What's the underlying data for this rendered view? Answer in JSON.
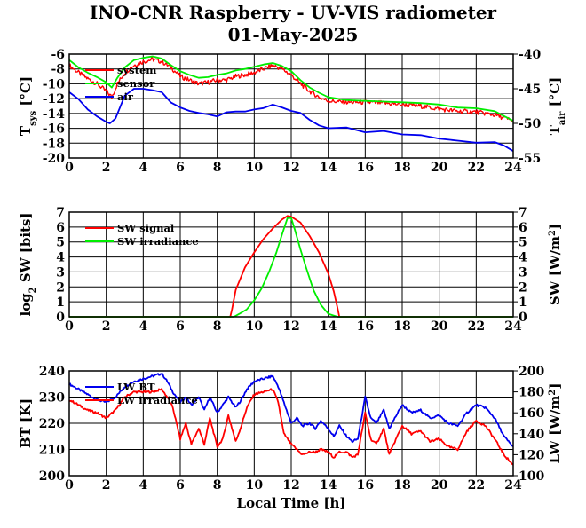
{
  "title": "INO-CNR Raspberry - UV-VIS radiometer",
  "subtitle": "01-May-2025",
  "colors": {
    "red": "#ff0000",
    "green": "#00ee00",
    "blue": "#0000ee"
  },
  "chart_data": [
    {
      "type": "line",
      "ylabel_left": {
        "main": "T",
        "sub": "sys",
        "unit": " [°C]"
      },
      "ylabel_right": {
        "main": "T",
        "sub": "air",
        "unit": " [°C]"
      },
      "ylim": [
        -20,
        -6
      ],
      "ylim_right": [
        -55,
        -40
      ],
      "xlim": [
        0,
        24
      ],
      "x_ticks": [
        "0",
        "2",
        "4",
        "6",
        "8",
        "10",
        "12",
        "14",
        "16",
        "18",
        "20",
        "22",
        "24"
      ],
      "y_ticks": [
        "-20",
        "-18",
        "-16",
        "-14",
        "-12",
        "-10",
        "-8",
        "-6"
      ],
      "y_ticks_right": [
        "-55",
        "-50",
        "-45",
        "-40"
      ],
      "legend": [
        "system",
        "sensor",
        "air"
      ],
      "series": [
        {
          "name": "system",
          "color": "red",
          "axis": "left",
          "noisy": true,
          "x": [
            0,
            0.5,
            1,
            1.5,
            2,
            2.3,
            2.6,
            3,
            3.5,
            4,
            4.5,
            5,
            5.5,
            6,
            6.5,
            7,
            7.5,
            8,
            8.5,
            9,
            9.5,
            10,
            10.5,
            11,
            11.5,
            12,
            12.5,
            13,
            13.5,
            14,
            15,
            16,
            17,
            18,
            19,
            20,
            21,
            22,
            23,
            24
          ],
          "y": [
            -7.5,
            -8.5,
            -9.3,
            -10,
            -11,
            -11.8,
            -10,
            -8.5,
            -7.5,
            -7,
            -6.7,
            -7,
            -7.8,
            -9,
            -9.5,
            -10,
            -9.8,
            -9.5,
            -9.5,
            -9,
            -8.8,
            -8.5,
            -8,
            -7.5,
            -8,
            -8.8,
            -10,
            -11,
            -11.8,
            -12.3,
            -12.5,
            -12.5,
            -12.6,
            -12.8,
            -13,
            -13.4,
            -13.7,
            -13.8,
            -14.2,
            -15
          ]
        },
        {
          "name": "sensor",
          "color": "green",
          "axis": "left",
          "x": [
            0,
            0.5,
            1,
            1.5,
            2,
            2.3,
            2.6,
            3,
            3.5,
            4,
            4.5,
            5,
            5.5,
            6,
            6.5,
            7,
            7.5,
            8,
            8.5,
            9,
            9.5,
            10,
            10.5,
            11,
            11.5,
            12,
            12.5,
            13,
            13.5,
            14,
            15,
            16,
            17,
            18,
            19,
            20,
            21,
            22,
            23,
            24
          ],
          "y": [
            -6.8,
            -7.8,
            -8.5,
            -9.1,
            -9.8,
            -10.5,
            -9.2,
            -7.8,
            -6.8,
            -6.5,
            -6.3,
            -6.6,
            -7.5,
            -8.3,
            -8.8,
            -9.2,
            -9.1,
            -8.8,
            -8.6,
            -8.2,
            -8,
            -7.7,
            -7.4,
            -7.2,
            -7.6,
            -8.3,
            -9.5,
            -10.5,
            -11.2,
            -11.8,
            -12.2,
            -12.3,
            -12.4,
            -12.5,
            -12.6,
            -12.8,
            -13.2,
            -13.3,
            -13.7,
            -15
          ]
        },
        {
          "name": "air",
          "color": "blue",
          "axis": "right",
          "x": [
            0,
            0.5,
            1,
            1.5,
            2,
            2.2,
            2.5,
            3,
            3.5,
            4,
            4.5,
            5,
            5.5,
            6,
            6.5,
            7,
            7.5,
            8,
            8.5,
            9,
            9.5,
            10,
            10.5,
            11,
            11.5,
            12,
            12.5,
            13,
            13.5,
            14,
            15,
            16,
            17,
            18,
            19,
            20,
            21,
            22,
            23,
            23.5,
            24
          ],
          "y": [
            -45.5,
            -46.5,
            -48,
            -49,
            -49.8,
            -50,
            -49.3,
            -46,
            -45,
            -45,
            -45.2,
            -45.5,
            -47,
            -47.7,
            -48.2,
            -48.5,
            -48.7,
            -49,
            -48.4,
            -48.3,
            -48.3,
            -48,
            -47.8,
            -47.3,
            -47.7,
            -48.2,
            -48.5,
            -49.5,
            -50.3,
            -50.7,
            -50.6,
            -51.3,
            -51.1,
            -51.6,
            -51.7,
            -52.2,
            -52.5,
            -52.8,
            -52.7,
            -53.2,
            -54
          ]
        }
      ]
    },
    {
      "type": "line",
      "ylabel_left": {
        "main": "log",
        "sub": "2",
        "unit": " SW [bits]"
      },
      "ylabel_right": {
        "main": "SW [W/m",
        "sup": "2",
        "unit": "]"
      },
      "ylim": [
        0,
        7
      ],
      "ylim_right": [
        0,
        7
      ],
      "xlim": [
        0,
        24
      ],
      "x_ticks": [
        "0",
        "2",
        "4",
        "6",
        "8",
        "10",
        "12",
        "14",
        "16",
        "18",
        "20",
        "22",
        "24"
      ],
      "y_ticks": [
        "0",
        "1",
        "2",
        "3",
        "4",
        "5",
        "6",
        "7"
      ],
      "y_ticks_right": [
        "0",
        "1",
        "2",
        "3",
        "4",
        "5",
        "6",
        "7"
      ],
      "legend": [
        "SW signal",
        "SW irradiance"
      ],
      "series": [
        {
          "name": "SW signal",
          "color": "red",
          "x": [
            0,
            8.7,
            8.8,
            9,
            9.5,
            10,
            10.5,
            11,
            11.5,
            11.8,
            12,
            12.5,
            13,
            13.5,
            14,
            14.3,
            14.5,
            14.6,
            24
          ],
          "y": [
            0,
            0,
            0.5,
            1.8,
            3.3,
            4.3,
            5.2,
            5.9,
            6.5,
            6.75,
            6.7,
            6.3,
            5.4,
            4.3,
            2.9,
            1.7,
            0.6,
            0,
            0
          ]
        },
        {
          "name": "SW irradiance",
          "color": "green",
          "x": [
            0,
            8.9,
            9.2,
            9.6,
            10,
            10.4,
            10.8,
            11.2,
            11.5,
            11.8,
            12,
            12.2,
            12.5,
            12.8,
            13.2,
            13.6,
            14,
            14.5,
            24
          ],
          "y": [
            0,
            0,
            0.2,
            0.5,
            1.1,
            1.9,
            3.0,
            4.3,
            5.5,
            6.6,
            6.6,
            5.8,
            4.5,
            3.3,
            1.8,
            0.8,
            0.2,
            0,
            0
          ]
        }
      ]
    },
    {
      "type": "line",
      "ylabel_left": {
        "main": "BT [K]"
      },
      "ylabel_right": {
        "main": "LW [W/m",
        "sup": "2",
        "unit": "]"
      },
      "xlabel": "Local Time [h]",
      "ylim": [
        200,
        240
      ],
      "ylim_right": [
        100,
        200
      ],
      "xlim": [
        0,
        24
      ],
      "x_ticks": [
        "0",
        "2",
        "4",
        "6",
        "8",
        "10",
        "12",
        "14",
        "16",
        "18",
        "20",
        "22",
        "24"
      ],
      "y_ticks": [
        "200",
        "210",
        "220",
        "230",
        "240"
      ],
      "y_ticks_right": [
        "100",
        "120",
        "140",
        "160",
        "180",
        "200"
      ],
      "legend": [
        "LW BT",
        "LW irradiance"
      ],
      "series": [
        {
          "name": "LW BT",
          "color": "blue",
          "noisy": true,
          "x": [
            0,
            0.5,
            1,
            1.5,
            2,
            2.5,
            3,
            3.5,
            4,
            4.5,
            5,
            5.3,
            5.6,
            6,
            6.3,
            6.6,
            7,
            7.3,
            7.6,
            8,
            8.3,
            8.6,
            9,
            9.3,
            9.6,
            10,
            10.5,
            11,
            11.3,
            11.6,
            12,
            12.3,
            12.6,
            13,
            13.3,
            13.6,
            14,
            14.3,
            14.6,
            15,
            15.3,
            15.6,
            16,
            16.3,
            16.6,
            17,
            17.3,
            17.6,
            18,
            18.5,
            19,
            19.5,
            20,
            20.5,
            21,
            21.5,
            22,
            22.5,
            23,
            23.5,
            24
          ],
          "y": [
            235,
            233,
            231,
            229,
            228,
            230,
            234,
            236,
            237,
            238,
            239,
            236,
            232,
            228,
            230,
            227,
            230,
            225,
            230,
            224,
            227,
            230,
            226,
            229,
            233,
            236,
            237,
            238,
            234,
            228,
            220,
            222,
            219,
            220,
            218,
            221,
            218,
            215,
            219,
            215,
            213,
            214,
            230,
            222,
            220,
            225,
            218,
            222,
            227,
            224,
            225,
            222,
            223,
            220,
            219,
            224,
            227,
            226,
            222,
            215,
            211
          ]
        },
        {
          "name": "LW irradiance",
          "color": "red",
          "noisy": true,
          "x": [
            0,
            0.5,
            1,
            1.5,
            2,
            2.5,
            3,
            3.5,
            4,
            4.5,
            5,
            5.3,
            5.6,
            6,
            6.3,
            6.6,
            7,
            7.3,
            7.6,
            8,
            8.3,
            8.6,
            9,
            9.3,
            9.6,
            10,
            10.5,
            11,
            11.3,
            11.6,
            12,
            12.3,
            12.6,
            13,
            13.3,
            13.6,
            14,
            14.3,
            14.6,
            15,
            15.3,
            15.6,
            16,
            16.3,
            16.6,
            17,
            17.3,
            17.6,
            18,
            18.5,
            19,
            19.5,
            20,
            20.5,
            21,
            21.5,
            22,
            22.5,
            23,
            23.5,
            24
          ],
          "y": [
            229,
            227,
            225,
            224,
            222,
            225,
            230,
            232,
            232,
            232,
            233,
            230,
            226,
            214,
            220,
            212,
            218,
            212,
            222,
            211,
            214,
            223,
            213,
            219,
            226,
            231,
            232,
            233,
            228,
            216,
            212,
            210,
            208,
            209,
            209,
            210,
            209,
            207,
            209,
            209,
            207,
            208,
            224,
            214,
            212,
            218,
            208,
            213,
            219,
            216,
            217,
            213,
            214,
            211,
            210,
            217,
            221,
            219,
            214,
            208,
            204
          ]
        }
      ]
    }
  ]
}
